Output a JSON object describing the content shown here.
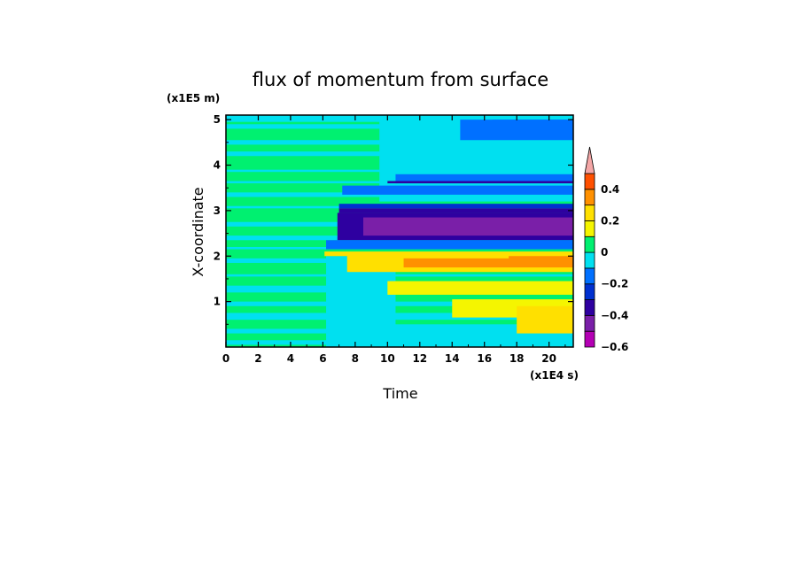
{
  "chart_data": {
    "type": "heatmap",
    "title": "flux of momentum from surface",
    "xlabel": "Time",
    "ylabel": "X-coordinate",
    "x_unit": "(x1E4 s)",
    "y_unit": "(x1E5 m)",
    "xlim": [
      0,
      21.5
    ],
    "ylim": [
      0,
      5.1
    ],
    "x_ticks": [
      "0",
      "2",
      "4",
      "6",
      "8",
      "10",
      "12",
      "14",
      "16",
      "18",
      "20"
    ],
    "y_ticks": [
      "1",
      "2",
      "3",
      "4",
      "5"
    ],
    "colorbar": {
      "levels": [
        -0.6,
        -0.5,
        -0.4,
        -0.3,
        -0.2,
        -0.1,
        0,
        0.1,
        0.2,
        0.3,
        0.4,
        0.5
      ],
      "labels": [
        "0.4",
        "0.2",
        "0",
        "−0.2",
        "−0.4",
        "−0.6"
      ],
      "colors": [
        "#b400b4",
        "#7a1fa8",
        "#2e00a0",
        "#0030d0",
        "#0070ff",
        "#00e0f0",
        "#00f070",
        "#f5f500",
        "#ffe000",
        "#ff9000",
        "#ff5000",
        "#f4a6a6"
      ],
      "extend": "max"
    },
    "regions": [
      {
        "x": [
          0,
          21.5
        ],
        "y": [
          0,
          5.1
        ],
        "value": 0.05
      },
      {
        "x": [
          0,
          21.5
        ],
        "y": [
          4.95,
          5.1
        ],
        "value": -0.05
      },
      {
        "x": [
          0,
          21.5
        ],
        "y": [
          4.8,
          4.9
        ],
        "value": -0.05
      },
      {
        "x": [
          0,
          21.5
        ],
        "y": [
          4.45,
          4.55
        ],
        "value": -0.05
      },
      {
        "x": [
          0,
          21.5
        ],
        "y": [
          4.2,
          4.3
        ],
        "value": -0.05
      },
      {
        "x": [
          0,
          21.5
        ],
        "y": [
          3.85,
          3.9
        ],
        "value": -0.05
      },
      {
        "x": [
          0,
          21.5
        ],
        "y": [
          3.6,
          3.65
        ],
        "value": -0.05
      },
      {
        "x": [
          0,
          21.5
        ],
        "y": [
          3.3,
          3.4
        ],
        "value": -0.05
      },
      {
        "x": [
          0,
          21.5
        ],
        "y": [
          3.05,
          3.1
        ],
        "value": -0.05
      },
      {
        "x": [
          0,
          21.5
        ],
        "y": [
          2.65,
          2.75
        ],
        "value": -0.05
      },
      {
        "x": [
          0,
          21.5
        ],
        "y": [
          2.35,
          2.45
        ],
        "value": -0.05
      },
      {
        "x": [
          0,
          21.5
        ],
        "y": [
          2.15,
          2.2
        ],
        "value": -0.05
      },
      {
        "x": [
          0,
          21.5
        ],
        "y": [
          1.85,
          1.95
        ],
        "value": -0.05
      },
      {
        "x": [
          0,
          21.5
        ],
        "y": [
          1.55,
          1.6
        ],
        "value": -0.05
      },
      {
        "x": [
          0,
          21.5
        ],
        "y": [
          1.2,
          1.35
        ],
        "value": -0.05
      },
      {
        "x": [
          0,
          21.5
        ],
        "y": [
          0.9,
          1.0
        ],
        "value": -0.05
      },
      {
        "x": [
          0,
          21.5
        ],
        "y": [
          0.6,
          0.75
        ],
        "value": -0.05
      },
      {
        "x": [
          0,
          21.5
        ],
        "y": [
          0.3,
          0.4
        ],
        "value": -0.05
      },
      {
        "x": [
          0,
          21.5
        ],
        "y": [
          0.05,
          0.15
        ],
        "value": -0.05
      },
      {
        "x": [
          6.2,
          10.5
        ],
        "y": [
          0,
          2.0
        ],
        "value": -0.05
      },
      {
        "x": [
          9.0,
          21.5
        ],
        "y": [
          0.0,
          0.5
        ],
        "value": -0.05
      },
      {
        "x": [
          9.5,
          21.5
        ],
        "y": [
          3.2,
          5.1
        ],
        "value": -0.05
      },
      {
        "x": [
          14.5,
          21.5
        ],
        "y": [
          4.55,
          5.0
        ],
        "value": -0.15
      },
      {
        "x": [
          16.5,
          21.5
        ],
        "y": [
          4.8,
          5.0
        ],
        "value": -0.15
      },
      {
        "x": [
          10.5,
          21.5
        ],
        "y": [
          3.6,
          3.8
        ],
        "value": -0.15
      },
      {
        "x": [
          7.2,
          21.5
        ],
        "y": [
          3.35,
          3.55
        ],
        "value": -0.15
      },
      {
        "x": [
          7.0,
          21.5
        ],
        "y": [
          3.05,
          3.15
        ],
        "value": -0.25
      },
      {
        "x": [
          10.0,
          21.5
        ],
        "y": [
          3.6,
          3.65
        ],
        "value": -0.35
      },
      {
        "x": [
          7.0,
          21.5
        ],
        "y": [
          2.95,
          3.05
        ],
        "value": -0.35
      },
      {
        "x": [
          6.9,
          21.5
        ],
        "y": [
          2.35,
          2.95
        ],
        "value": -0.4
      },
      {
        "x": [
          8.5,
          21.5
        ],
        "y": [
          2.45,
          2.85
        ],
        "value": -0.5
      },
      {
        "x": [
          6.2,
          21.5
        ],
        "y": [
          2.15,
          2.35
        ],
        "value": -0.15
      },
      {
        "x": [
          6.1,
          21.5
        ],
        "y": [
          2.0,
          2.1
        ],
        "value": 0.25
      },
      {
        "x": [
          7.5,
          21.5
        ],
        "y": [
          1.65,
          2.05
        ],
        "value": 0.2
      },
      {
        "x": [
          11.0,
          21.5
        ],
        "y": [
          1.75,
          1.95
        ],
        "value": 0.3
      },
      {
        "x": [
          17.5,
          21.5
        ],
        "y": [
          1.85,
          2.0
        ],
        "value": 0.35
      },
      {
        "x": [
          10.0,
          21.5
        ],
        "y": [
          1.15,
          1.45
        ],
        "value": 0.15
      },
      {
        "x": [
          14.0,
          21.5
        ],
        "y": [
          0.65,
          1.05
        ],
        "value": 0.15
      },
      {
        "x": [
          18.0,
          21.5
        ],
        "y": [
          0.3,
          0.9
        ],
        "value": 0.2
      }
    ]
  }
}
